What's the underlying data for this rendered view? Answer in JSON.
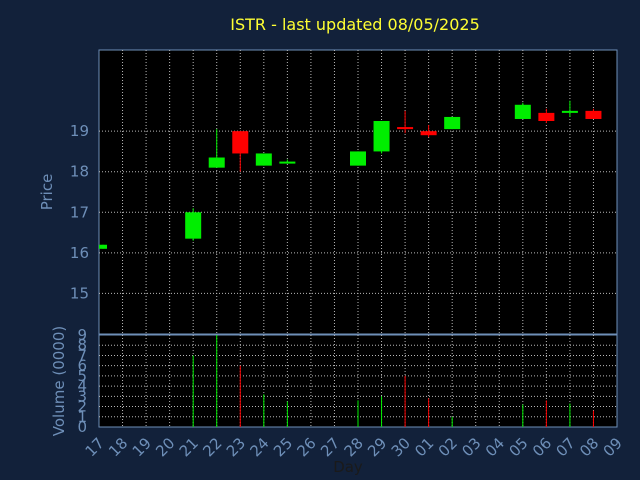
{
  "chart_data": {
    "type": "candlestick",
    "title": "ISTR - last updated 08/05/2025",
    "xlabel": "Day",
    "price_ylabel": "Price",
    "volume_ylabel": "Volume (0000)",
    "x_ticks": [
      "17",
      "18",
      "19",
      "20",
      "21",
      "22",
      "23",
      "24",
      "25",
      "26",
      "27",
      "28",
      "29",
      "30",
      "01",
      "02",
      "03",
      "04",
      "05",
      "06",
      "07",
      "08",
      "09"
    ],
    "price_yticks": [
      "15",
      "16",
      "17",
      "18",
      "19"
    ],
    "price_ylim": [
      14.0,
      21.0
    ],
    "volume_yticks": [
      "0",
      "1",
      "2",
      "3",
      "4",
      "5",
      "6",
      "7",
      "8",
      "9"
    ],
    "volume_ylim": [
      0,
      9
    ],
    "grid": true,
    "up_color": "#00ee00",
    "down_color": "#ff0000",
    "background": "#12213a",
    "plot_background": "#000000",
    "candles": [
      {
        "x": 0,
        "open": 16.1,
        "high": 16.2,
        "low": 16.1,
        "close": 16.2,
        "volume": 0
      },
      {
        "x": 4,
        "open": 16.35,
        "high": 17.1,
        "low": 16.3,
        "close": 17.0,
        "volume": 7.0
      },
      {
        "x": 5,
        "open": 18.1,
        "high": 19.05,
        "low": 18.1,
        "close": 18.35,
        "volume": 9.0
      },
      {
        "x": 6,
        "open": 19.0,
        "high": 19.0,
        "low": 18.0,
        "close": 18.45,
        "volume": 6.0
      },
      {
        "x": 7,
        "open": 18.15,
        "high": 18.45,
        "low": 18.15,
        "close": 18.45,
        "volume": 3.2
      },
      {
        "x": 8,
        "open": 18.2,
        "high": 18.3,
        "low": 18.2,
        "close": 18.25,
        "volume": 2.5
      },
      {
        "x": 11,
        "open": 18.15,
        "high": 18.5,
        "low": 18.15,
        "close": 18.5,
        "volume": 2.6
      },
      {
        "x": 12,
        "open": 18.5,
        "high": 19.25,
        "low": 18.45,
        "close": 19.25,
        "volume": 3.0
      },
      {
        "x": 13,
        "open": 19.1,
        "high": 19.5,
        "low": 18.95,
        "close": 19.05,
        "volume": 5.0
      },
      {
        "x": 14,
        "open": 19.0,
        "high": 19.15,
        "low": 18.85,
        "close": 18.9,
        "volume": 2.8
      },
      {
        "x": 15,
        "open": 19.05,
        "high": 19.35,
        "low": 19.05,
        "close": 19.35,
        "volume": 1.0
      },
      {
        "x": 18,
        "open": 19.3,
        "high": 19.7,
        "low": 19.3,
        "close": 19.65,
        "volume": 2.2
      },
      {
        "x": 19,
        "open": 19.45,
        "high": 19.55,
        "low": 19.2,
        "close": 19.25,
        "volume": 2.6
      },
      {
        "x": 20,
        "open": 19.45,
        "high": 19.75,
        "low": 19.35,
        "close": 19.5,
        "volume": 2.3
      },
      {
        "x": 21,
        "open": 19.5,
        "high": 19.55,
        "low": 19.3,
        "close": 19.3,
        "volume": 1.6
      }
    ]
  }
}
